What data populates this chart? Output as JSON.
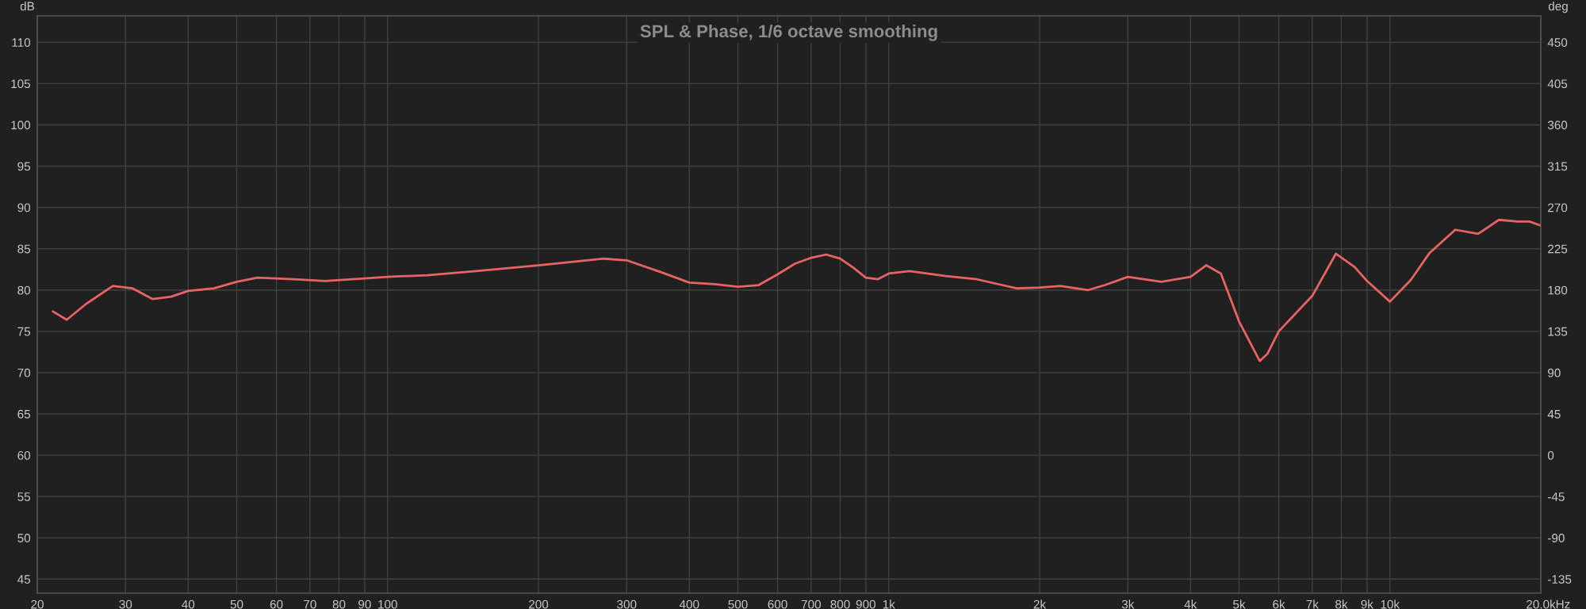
{
  "chart_data": {
    "type": "line",
    "title": "SPL & Phase, 1/6 octave smoothing",
    "ylabel": "dB",
    "y2label": "deg",
    "log": "x",
    "x": [
      21.5,
      22.9,
      25,
      28.3,
      31,
      34,
      37,
      40,
      45,
      50,
      55,
      65,
      75,
      90,
      100,
      120,
      150,
      200,
      270,
      300,
      350,
      400,
      450,
      500,
      550,
      600,
      650,
      700,
      750,
      800,
      850,
      900,
      950,
      1000,
      1100,
      1300,
      1500,
      1800,
      2000,
      2200,
      2500,
      2700,
      3000,
      3500,
      4000,
      4300,
      4600,
      5000,
      5500,
      5700,
      6000,
      7000,
      7800,
      8500,
      9000,
      10000,
      11000,
      12000,
      13500,
      15000,
      16500,
      18000,
      19000,
      20000
    ],
    "series": [
      {
        "color": "#e86464",
        "values": [
          77.4,
          76.4,
          78.3,
          80.5,
          80.2,
          78.9,
          79.2,
          79.9,
          80.2,
          81.0,
          81.5,
          81.3,
          81.1,
          81.4,
          81.6,
          81.8,
          82.3,
          83.0,
          83.8,
          83.6,
          82.2,
          80.9,
          80.7,
          80.4,
          80.6,
          81.9,
          83.2,
          83.9,
          84.3,
          83.8,
          82.7,
          81.5,
          81.3,
          82.0,
          82.3,
          81.7,
          81.3,
          80.2,
          80.3,
          80.5,
          80.0,
          80.6,
          81.6,
          81.0,
          81.6,
          83.0,
          82.0,
          76.2,
          71.4,
          72.3,
          75.0,
          79.3,
          84.4,
          82.8,
          81.1,
          78.6,
          81.2,
          84.5,
          87.3,
          86.8,
          88.5,
          88.3,
          88.3,
          87.8
        ]
      }
    ],
    "xlim": [
      20,
      20000
    ],
    "ylim": [
      43.3,
      113.2
    ],
    "y2lim": [
      -150.3,
      478.8
    ],
    "xticks": [
      20,
      30,
      40,
      50,
      60,
      70,
      80,
      90,
      100,
      200,
      300,
      400,
      500,
      600,
      700,
      800,
      900,
      {
        "value": 1000,
        "label": "1k"
      },
      {
        "value": 2000,
        "label": "2k"
      },
      {
        "value": 3000,
        "label": "3k"
      },
      {
        "value": 4000,
        "label": "4k"
      },
      {
        "value": 5000,
        "label": "5k"
      },
      {
        "value": 6000,
        "label": "6k"
      },
      {
        "value": 7000,
        "label": "7k"
      },
      {
        "value": 8000,
        "label": "8k"
      },
      {
        "value": 9000,
        "label": "9k"
      },
      {
        "value": 10000,
        "label": "10k"
      },
      {
        "value": 20000,
        "label": "20.0k"
      }
    ],
    "xlabel": "Hz",
    "yticks": [
      45,
      50,
      55,
      60,
      65,
      70,
      75,
      80,
      85,
      90,
      95,
      100,
      105,
      110
    ],
    "y2ticks": [
      -135,
      -90,
      -45,
      0,
      45,
      90,
      135,
      180,
      225,
      270,
      315,
      360,
      405,
      450
    ],
    "grid": true
  }
}
